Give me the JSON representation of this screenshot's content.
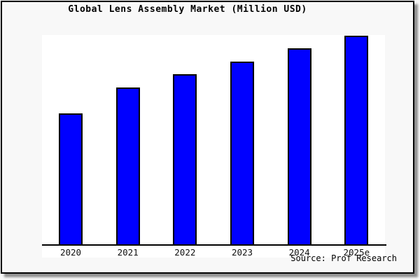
{
  "chart_data": {
    "type": "bar",
    "title": "Global Lens Assembly Market (Million USD)",
    "categories": [
      "2020",
      "2021",
      "2022",
      "2023",
      "2024",
      "2025e"
    ],
    "values": [
      189,
      226,
      245,
      263,
      282,
      300
    ],
    "values_note": "chart shows no y-axis or value labels; values are measured bar heights in screen pixels (relative ratios ~1.00 : 1.20 : 1.30 : 1.39 : 1.49 : 1.59)",
    "xlabel": "",
    "ylabel": "",
    "grid": false,
    "legend": "none",
    "bar_fill_color": "#0000ff",
    "bar_border_color": "#000000",
    "plot_background_color": "#ffffff",
    "canvas_background_color": "#f8f8f8",
    "frame_border_color": "#000000"
  },
  "source": {
    "text": "Source: Prof Research"
  }
}
